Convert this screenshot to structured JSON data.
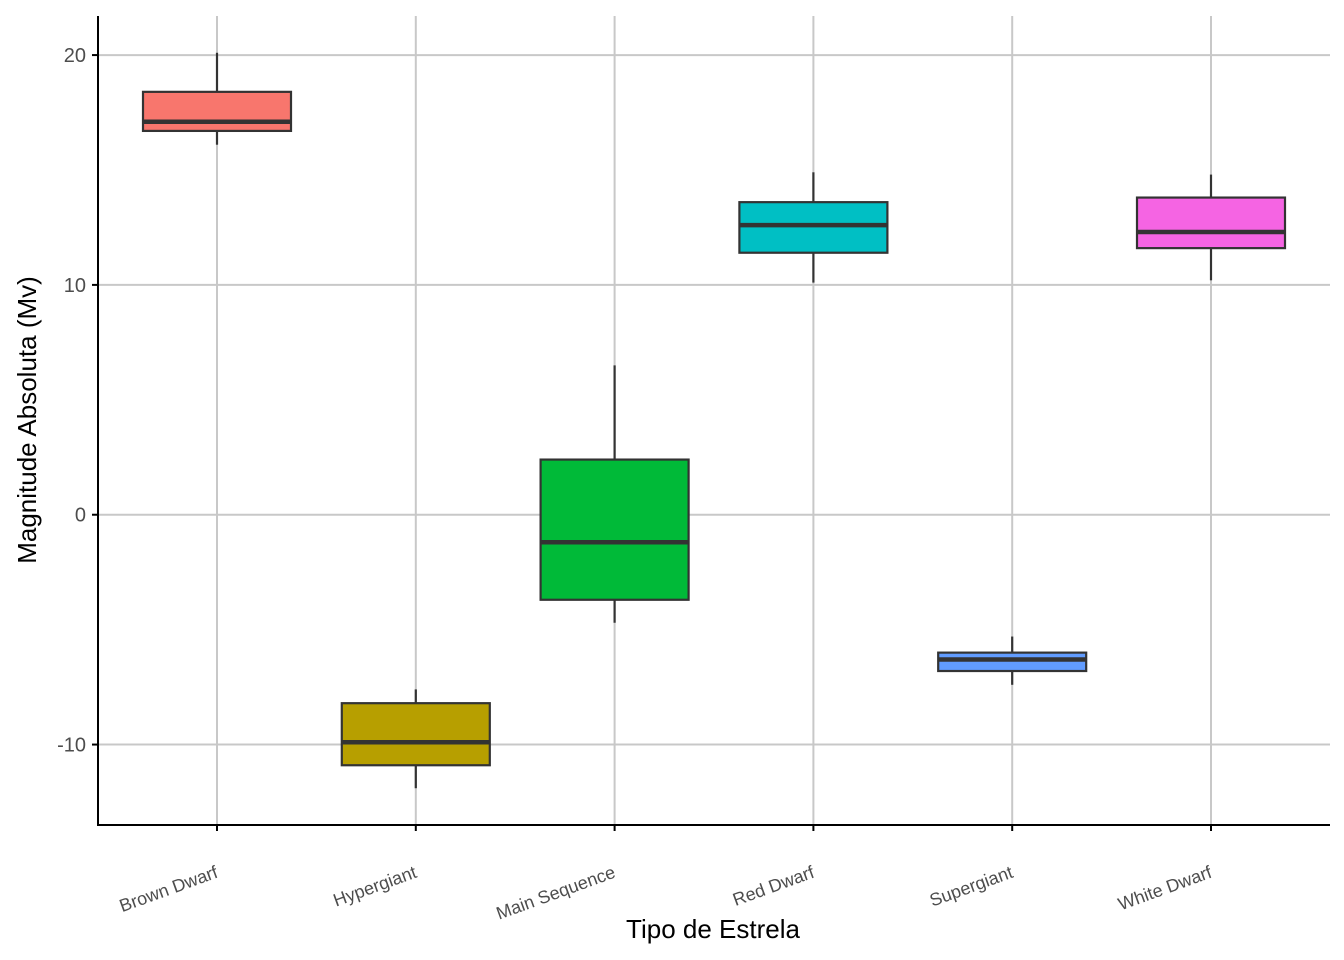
{
  "chart_data": {
    "type": "boxplot",
    "xlabel": "Tipo de Estrela",
    "ylabel": "Magnitude Absoluta (Mv)",
    "ylim": [
      -13.5,
      21.7
    ],
    "yticks": [
      -10,
      0,
      10,
      20
    ],
    "ytick_labels": [
      "-10",
      "0",
      "10",
      "20"
    ],
    "grid": true,
    "legend": "none",
    "categories": [
      "Brown Dwarf",
      "Hypergiant",
      "Main Sequence",
      "Red Dwarf",
      "Supergiant",
      "White Dwarf"
    ],
    "series": [
      {
        "category": "Brown Dwarf",
        "min": 16.1,
        "q1": 16.7,
        "median": 17.1,
        "q3": 18.4,
        "max": 20.1,
        "color": "#F8766D"
      },
      {
        "category": "Hypergiant",
        "min": -11.9,
        "q1": -10.9,
        "median": -9.9,
        "q3": -8.2,
        "max": -7.6,
        "color": "#B79F00"
      },
      {
        "category": "Main Sequence",
        "min": -4.7,
        "q1": -3.7,
        "median": -1.2,
        "q3": 2.4,
        "max": 6.5,
        "color": "#00BA38"
      },
      {
        "category": "Red Dwarf",
        "min": 10.1,
        "q1": 11.4,
        "median": 12.6,
        "q3": 13.6,
        "max": 14.9,
        "color": "#00BFC4"
      },
      {
        "category": "Supergiant",
        "min": -7.4,
        "q1": -6.8,
        "median": -6.3,
        "q3": -6.0,
        "max": -5.3,
        "color": "#619CFF"
      },
      {
        "category": "White Dwarf",
        "min": 10.2,
        "q1": 11.6,
        "median": 12.3,
        "q3": 13.8,
        "max": 14.8,
        "color": "#F564E3"
      }
    ]
  }
}
